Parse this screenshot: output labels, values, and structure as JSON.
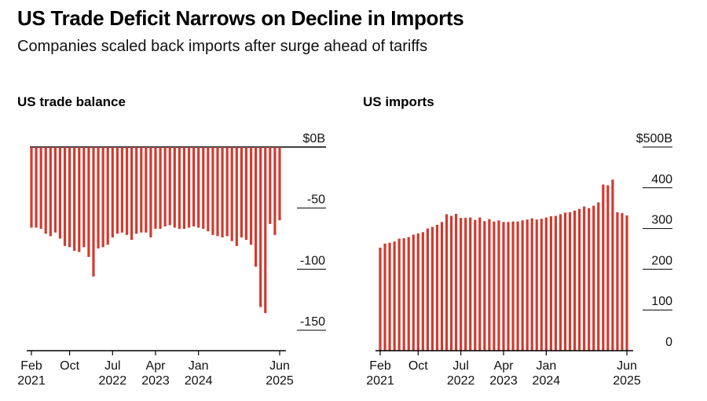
{
  "header": {
    "title": "US Trade Deficit Narrows on Decline in Imports",
    "subtitle": "Companies scaled back imports after surge ahead of tariffs"
  },
  "colors": {
    "bar": "#d23a2f",
    "axis": "#000000",
    "grid": "#000000"
  },
  "chart_data": [
    {
      "type": "bar",
      "title": "US trade balance",
      "units": "$ billions",
      "ylim": [
        -160,
        0
      ],
      "yticks": [
        0,
        -50,
        -100,
        -150
      ],
      "ytick_labels": [
        "$0B",
        "-50",
        "-100",
        "-150"
      ],
      "xtick_labels": [
        {
          "line1": "Feb",
          "line2": "2021",
          "index": 0
        },
        {
          "line1": "Oct",
          "line2": "",
          "index": 8
        },
        {
          "line1": "Jul",
          "line2": "2022",
          "index": 17
        },
        {
          "line1": "Apr",
          "line2": "2023",
          "index": 26
        },
        {
          "line1": "Jan",
          "line2": "2024",
          "index": 35
        },
        {
          "line1": "Jun",
          "line2": "2025",
          "index": 52
        }
      ],
      "x": [
        "2021-02",
        "2021-03",
        "2021-04",
        "2021-05",
        "2021-06",
        "2021-07",
        "2021-08",
        "2021-09",
        "2021-10",
        "2021-11",
        "2021-12",
        "2022-01",
        "2022-02",
        "2022-03",
        "2022-04",
        "2022-05",
        "2022-06",
        "2022-07",
        "2022-08",
        "2022-09",
        "2022-10",
        "2022-11",
        "2022-12",
        "2023-01",
        "2023-02",
        "2023-03",
        "2023-04",
        "2023-05",
        "2023-06",
        "2023-07",
        "2023-08",
        "2023-09",
        "2023-10",
        "2023-11",
        "2023-12",
        "2024-01",
        "2024-02",
        "2024-03",
        "2024-04",
        "2024-05",
        "2024-06",
        "2024-07",
        "2024-08",
        "2024-09",
        "2024-10",
        "2024-11",
        "2024-12",
        "2025-01",
        "2025-02",
        "2025-03",
        "2025-04",
        "2025-05",
        "2025-06"
      ],
      "values": [
        -66,
        -66,
        -67,
        -71,
        -73,
        -70,
        -75,
        -81,
        -82,
        -85,
        -86,
        -82,
        -90,
        -106,
        -83,
        -82,
        -80,
        -74,
        -71,
        -70,
        -72,
        -76,
        -71,
        -70,
        -70,
        -74,
        -67,
        -67,
        -65,
        -64,
        -66,
        -67,
        -67,
        -66,
        -65,
        -66,
        -67,
        -69,
        -72,
        -73,
        -74,
        -73,
        -77,
        -81,
        -74,
        -76,
        -80,
        -98,
        -131,
        -136,
        -63,
        -72,
        -60
      ]
    },
    {
      "type": "bar",
      "title": "US imports",
      "units": "$ billions",
      "ylim": [
        0,
        500
      ],
      "yticks": [
        0,
        100,
        200,
        300,
        400,
        500
      ],
      "ytick_labels": [
        "0",
        "100",
        "200",
        "300",
        "400",
        "$500B"
      ],
      "xtick_labels": [
        {
          "line1": "Feb",
          "line2": "2021",
          "index": 0
        },
        {
          "line1": "Oct",
          "line2": "",
          "index": 8
        },
        {
          "line1": "Jul",
          "line2": "2022",
          "index": 17
        },
        {
          "line1": "Apr",
          "line2": "2023",
          "index": 26
        },
        {
          "line1": "Jan",
          "line2": "2024",
          "index": 35
        },
        {
          "line1": "Jun",
          "line2": "2025",
          "index": 52
        }
      ],
      "x": [
        "2021-02",
        "2021-03",
        "2021-04",
        "2021-05",
        "2021-06",
        "2021-07",
        "2021-08",
        "2021-09",
        "2021-10",
        "2021-11",
        "2021-12",
        "2022-01",
        "2022-02",
        "2022-03",
        "2022-04",
        "2022-05",
        "2022-06",
        "2022-07",
        "2022-08",
        "2022-09",
        "2022-10",
        "2022-11",
        "2022-12",
        "2023-01",
        "2023-02",
        "2023-03",
        "2023-04",
        "2023-05",
        "2023-06",
        "2023-07",
        "2023-08",
        "2023-09",
        "2023-10",
        "2023-11",
        "2023-12",
        "2024-01",
        "2024-02",
        "2024-03",
        "2024-04",
        "2024-05",
        "2024-06",
        "2024-07",
        "2024-08",
        "2024-09",
        "2024-10",
        "2024-11",
        "2024-12",
        "2025-01",
        "2025-02",
        "2025-03",
        "2025-04",
        "2025-05",
        "2025-06"
      ],
      "values": [
        253,
        263,
        265,
        268,
        275,
        276,
        279,
        285,
        288,
        291,
        300,
        304,
        309,
        316,
        335,
        331,
        336,
        326,
        326,
        327,
        321,
        327,
        318,
        323,
        317,
        320,
        316,
        316,
        317,
        317,
        320,
        322,
        325,
        322,
        324,
        327,
        330,
        331,
        335,
        339,
        340,
        344,
        348,
        354,
        350,
        356,
        364,
        408,
        406,
        420,
        340,
        338,
        332
      ]
    }
  ]
}
